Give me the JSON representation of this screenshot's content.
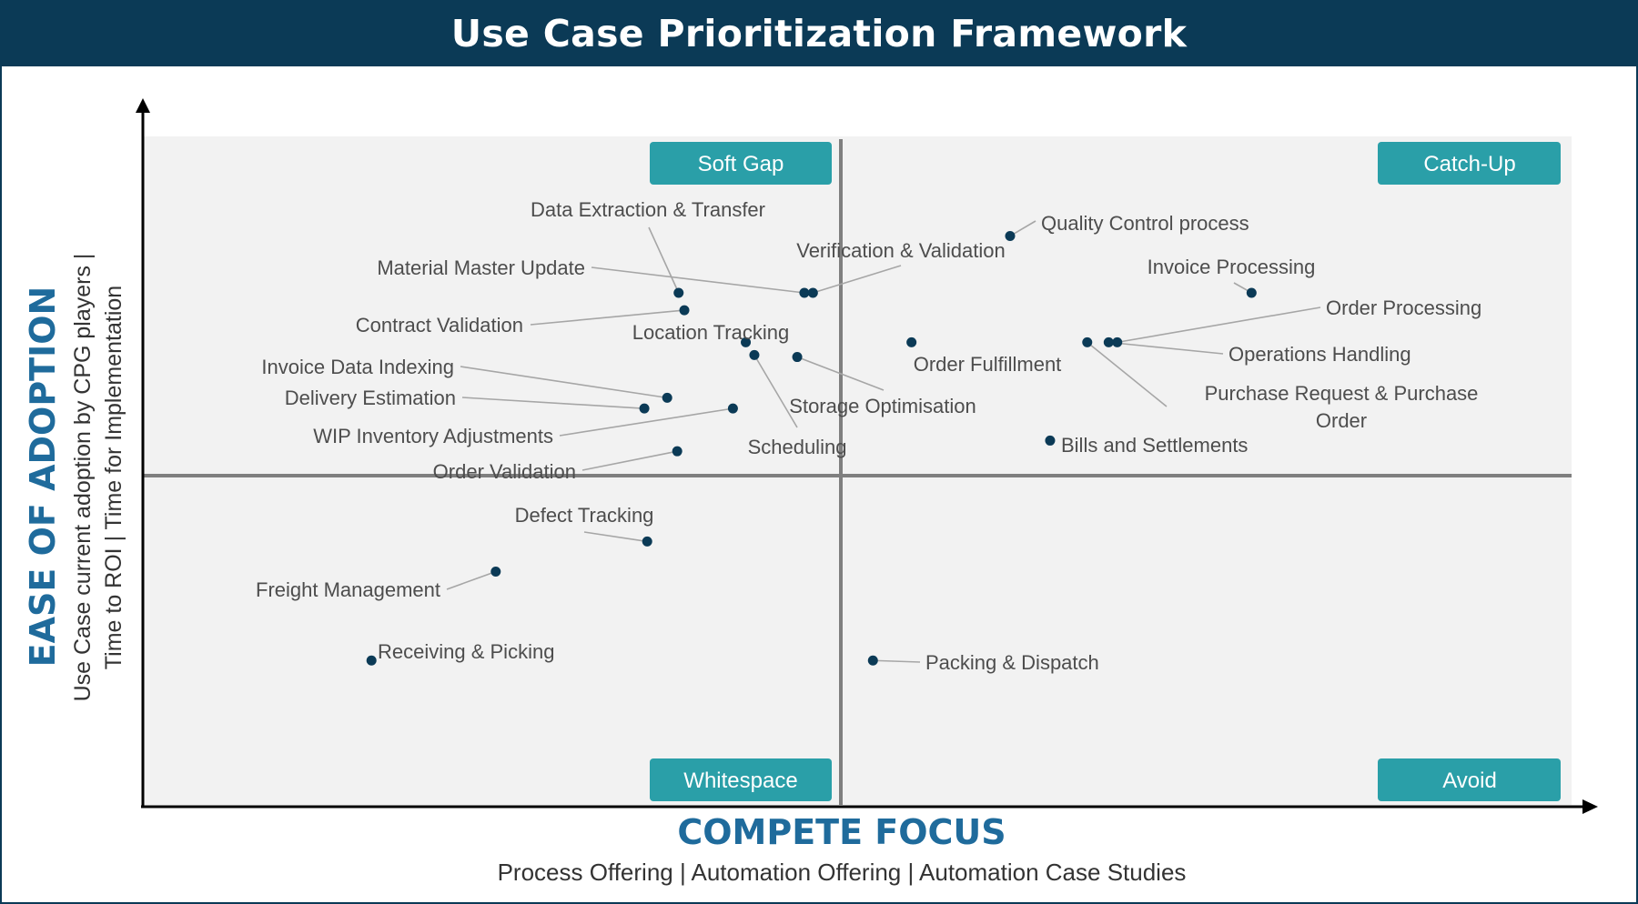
{
  "title": "Use Case Prioritization Framework",
  "axes": {
    "x_title": "COMPETE FOCUS",
    "x_subtitle": "Process Offering | Automation Offering | Automation Case Studies",
    "y_title": "EASE OF ADOPTION",
    "y_subtitle_line1": "Use Case current adoption by CPG players |",
    "y_subtitle_line2": "Time to ROI | Time for Implementation"
  },
  "colors": {
    "header": "#0b3a56",
    "axis_title": "#1f6b9c",
    "quadrant_badge": "#2a9fa8",
    "plot_background": "#f2f2f2",
    "point": "#0b3a56",
    "leader_line": "#a6a6a6",
    "divider": "#7f7f7f"
  },
  "chart_data": {
    "type": "scatter",
    "title": "Use Case Prioritization Framework",
    "xlabel": "COMPETE FOCUS",
    "ylabel": "EASE OF ADOPTION",
    "xlim": [
      0,
      100
    ],
    "ylim": [
      0,
      100
    ],
    "grid": false,
    "quadrants": [
      {
        "name": "Soft Gap",
        "position": "top-left"
      },
      {
        "name": "Catch-Up",
        "position": "top-right"
      },
      {
        "name": "Whitespace",
        "position": "bottom-left"
      },
      {
        "name": "Avoid",
        "position": "bottom-right"
      }
    ],
    "points": [
      {
        "label": "Data Extraction & Transfer",
        "x": 37.5,
        "y": 76.6
      },
      {
        "label": "Material Master Update",
        "x": 46.3,
        "y": 76.6
      },
      {
        "label": "Verification & Validation",
        "x": 46.9,
        "y": 76.6
      },
      {
        "label": "Quality Control process",
        "x": 60.7,
        "y": 85.1
      },
      {
        "label": "Invoice Processing",
        "x": 77.6,
        "y": 76.6
      },
      {
        "label": "Contract Validation",
        "x": 37.9,
        "y": 74.0
      },
      {
        "label": "Location Tracking",
        "x": 42.2,
        "y": 69.2
      },
      {
        "label": "Storage Optimisation",
        "x": 45.8,
        "y": 67.0
      },
      {
        "label": "Order Fulfillment",
        "x": 53.8,
        "y": 69.2
      },
      {
        "label": "Order Processing",
        "x": 68.2,
        "y": 69.2
      },
      {
        "label": "Operations Handling",
        "x": 67.6,
        "y": 69.2
      },
      {
        "label": "Purchase Request  & Purchase Order",
        "x": 66.1,
        "y": 69.2
      },
      {
        "label": "Scheduling",
        "x": 42.8,
        "y": 67.3
      },
      {
        "label": "Invoice Data Indexing",
        "x": 36.7,
        "y": 60.9
      },
      {
        "label": "Delivery Estimation",
        "x": 35.1,
        "y": 59.3
      },
      {
        "label": "WIP Inventory Adjustments",
        "x": 41.3,
        "y": 59.3
      },
      {
        "label": "Order Validation",
        "x": 37.4,
        "y": 52.9
      },
      {
        "label": "Bills and Settlements",
        "x": 63.5,
        "y": 54.5
      },
      {
        "label": "Defect Tracking",
        "x": 35.3,
        "y": 39.4
      },
      {
        "label": "Freight Management",
        "x": 24.7,
        "y": 34.9
      },
      {
        "label": "Receiving & Picking",
        "x": 16.0,
        "y": 21.6
      },
      {
        "label": "Packing & Dispatch",
        "x": 51.1,
        "y": 21.6
      }
    ]
  }
}
